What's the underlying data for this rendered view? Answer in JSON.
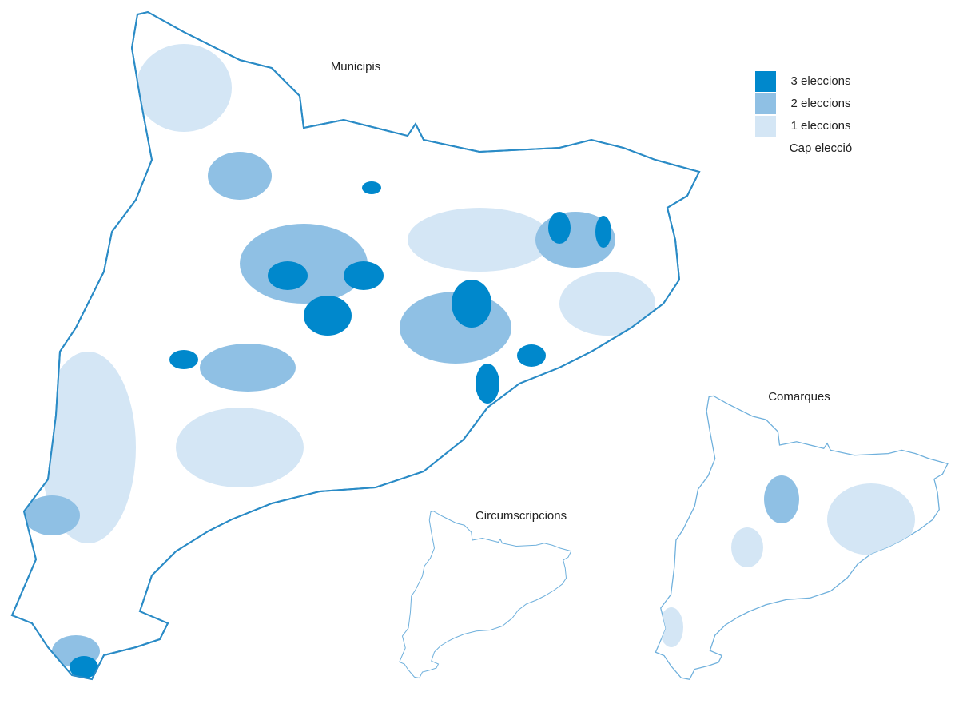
{
  "maps": [
    {
      "title": "Municipis"
    },
    {
      "title": "Circumscripcions"
    },
    {
      "title": "Comarques"
    }
  ],
  "legend": [
    {
      "label": "3 eleccions",
      "color": "#0088cc"
    },
    {
      "label": "2 eleccions",
      "color": "#8fc0e4"
    },
    {
      "label": "1 eleccions",
      "color": "#d4e6f5"
    },
    {
      "label": "Cap elecció",
      "color": "#ffffff"
    }
  ]
}
